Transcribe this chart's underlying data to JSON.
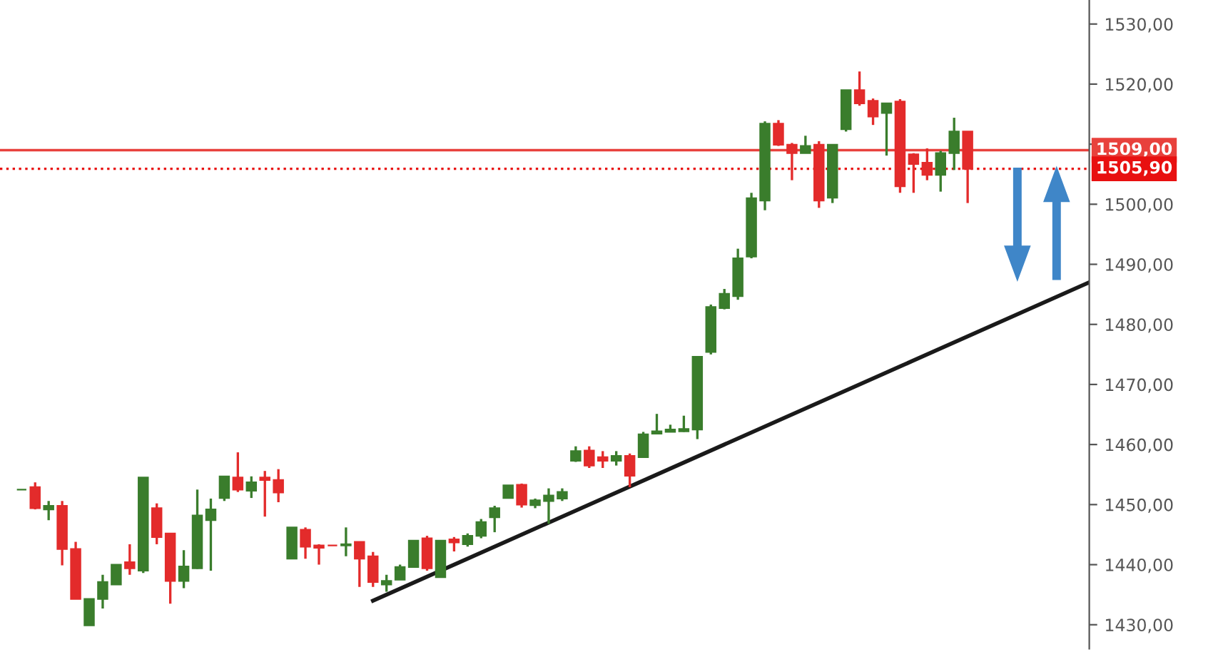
{
  "chart_data": {
    "type": "candlestick",
    "categories": [
      null,
      null,
      null,
      null,
      null,
      null,
      null,
      null,
      null,
      null,
      null,
      null,
      null,
      null,
      null,
      null,
      null,
      null,
      null,
      null,
      null,
      null,
      null,
      null,
      null,
      null,
      null,
      null,
      null,
      null,
      null,
      null,
      null,
      null,
      null,
      null,
      null,
      null,
      null,
      null,
      null,
      null,
      null,
      null,
      null,
      null,
      null,
      null,
      null,
      null,
      null,
      null,
      null,
      null,
      null,
      null,
      null,
      null,
      null,
      null,
      null,
      null,
      null,
      null,
      null,
      null,
      null,
      null,
      null,
      null,
      null,
      null,
      null,
      null,
      null,
      null,
      null,
      null,
      null,
      null
    ],
    "ohlc": [
      [
        1452.5,
        1452.5,
        1452.5,
        1452.5
      ],
      [
        1452.9,
        1453.7,
        1449.2,
        1449.4
      ],
      [
        1449.2,
        1450.6,
        1447.4,
        1449.8
      ],
      [
        1449.8,
        1450.6,
        1439.9,
        1442.6
      ],
      [
        1442.6,
        1443.8,
        1434.3,
        1434.3
      ],
      [
        1429.9,
        1434.3,
        1429.9,
        1434.3
      ],
      [
        1434.3,
        1438.3,
        1432.7,
        1437.1
      ],
      [
        1436.7,
        1440.0,
        1436.7,
        1440.0
      ],
      [
        1440.4,
        1443.4,
        1438.3,
        1439.4
      ],
      [
        1439.0,
        1454.5,
        1438.6,
        1454.5
      ],
      [
        1449.4,
        1450.2,
        1443.4,
        1444.6
      ],
      [
        1445.2,
        1445.2,
        1433.5,
        1437.3
      ],
      [
        1437.3,
        1442.4,
        1436.1,
        1439.7
      ],
      [
        1439.4,
        1452.5,
        1439.3,
        1448.2
      ],
      [
        1447.4,
        1451.0,
        1439.0,
        1449.2
      ],
      [
        1451.1,
        1454.7,
        1450.6,
        1454.7
      ],
      [
        1454.5,
        1458.7,
        1452.1,
        1452.5
      ],
      [
        1452.3,
        1454.7,
        1451.1,
        1453.7
      ],
      [
        1454.5,
        1455.6,
        1448.0,
        1454.1
      ],
      [
        1454.1,
        1455.9,
        1450.4,
        1452.0
      ],
      [
        1441.0,
        1446.2,
        1441.0,
        1446.2
      ],
      [
        1445.8,
        1446.2,
        1441.0,
        1443.0
      ],
      [
        1443.2,
        1443.4,
        1440.0,
        1442.8
      ],
      [
        1443.2,
        1443.2,
        1443.2,
        1443.2
      ],
      [
        1443.2,
        1446.2,
        1441.4,
        1443.4
      ],
      [
        1443.8,
        1443.8,
        1436.3,
        1441.0
      ],
      [
        1441.4,
        1442.1,
        1436.3,
        1437.1
      ],
      [
        1436.7,
        1438.3,
        1435.5,
        1437.3
      ],
      [
        1437.5,
        1440.0,
        1437.5,
        1439.6
      ],
      [
        1439.6,
        1444.0,
        1439.6,
        1444.0
      ],
      [
        1444.4,
        1444.8,
        1439.0,
        1439.4
      ],
      [
        1437.9,
        1444.0,
        1437.9,
        1444.0
      ],
      [
        1444.2,
        1444.6,
        1442.2,
        1443.7
      ],
      [
        1443.4,
        1445.2,
        1443.0,
        1444.8
      ],
      [
        1444.8,
        1447.6,
        1444.4,
        1447.1
      ],
      [
        1447.9,
        1449.8,
        1445.4,
        1449.4
      ],
      [
        1451.1,
        1453.2,
        1451.1,
        1453.2
      ],
      [
        1453.3,
        1453.5,
        1449.5,
        1450.0
      ],
      [
        1449.9,
        1451.0,
        1449.4,
        1450.7
      ],
      [
        1450.6,
        1452.7,
        1446.8,
        1451.5
      ],
      [
        1451.0,
        1452.7,
        1450.6,
        1452.1
      ],
      [
        1457.3,
        1459.7,
        1457.1,
        1458.9
      ],
      [
        1459.0,
        1459.7,
        1456.1,
        1456.5
      ],
      [
        1457.9,
        1458.9,
        1456.1,
        1457.3
      ],
      [
        1457.3,
        1458.9,
        1456.5,
        1458.1
      ],
      [
        1458.1,
        1458.5,
        1452.9,
        1454.8
      ],
      [
        1457.9,
        1462.1,
        1457.9,
        1461.7
      ],
      [
        1461.8,
        1465.1,
        1461.8,
        1462.2
      ],
      [
        1462.1,
        1463.3,
        1462.1,
        1462.5
      ],
      [
        1462.2,
        1464.8,
        1462.1,
        1462.6
      ],
      [
        1462.5,
        1474.6,
        1460.9,
        1474.6
      ],
      [
        1475.4,
        1483.3,
        1475.0,
        1482.9
      ],
      [
        1482.7,
        1485.9,
        1482.5,
        1485.1
      ],
      [
        1484.7,
        1492.6,
        1484.1,
        1491.0
      ],
      [
        1491.3,
        1501.9,
        1491.0,
        1501.0
      ],
      [
        1500.6,
        1513.8,
        1499.0,
        1513.4
      ],
      [
        1513.4,
        1514.0,
        1509.7,
        1509.9
      ],
      [
        1509.9,
        1510.2,
        1504.0,
        1508.5
      ],
      [
        1508.5,
        1511.4,
        1508.5,
        1509.7
      ],
      [
        1509.9,
        1510.5,
        1499.4,
        1500.6
      ],
      [
        1501.1,
        1509.9,
        1500.2,
        1509.9
      ],
      [
        1512.5,
        1519.0,
        1512.1,
        1519.0
      ],
      [
        1519.0,
        1522.1,
        1516.4,
        1516.8
      ],
      [
        1517.2,
        1517.6,
        1513.2,
        1514.6
      ],
      [
        1515.2,
        1516.8,
        1508.1,
        1516.8
      ],
      [
        1517.1,
        1517.5,
        1501.9,
        1503.0
      ],
      [
        1508.3,
        1508.5,
        1501.9,
        1506.7
      ],
      [
        1506.9,
        1509.3,
        1504.0,
        1504.9
      ],
      [
        1504.9,
        1508.9,
        1502.1,
        1508.5
      ],
      [
        1508.5,
        1514.4,
        1505.7,
        1512.1
      ],
      [
        1512.1,
        1512.1,
        1500.2,
        1505.9
      ],
      null,
      null,
      null,
      null,
      null,
      null,
      null,
      null,
      null
    ],
    "colors": [
      "#3a7d2c",
      "#e32b2b",
      "#3a7d2c",
      "#e32b2b",
      "#e32b2b",
      "#3a7d2c",
      "#3a7d2c",
      "#3a7d2c",
      "#e32b2b",
      "#3a7d2c",
      "#e32b2b",
      "#e32b2b",
      "#3a7d2c",
      "#3a7d2c",
      "#3a7d2c",
      "#3a7d2c",
      "#e32b2b",
      "#3a7d2c",
      "#e32b2b",
      "#e32b2b",
      "#3a7d2c",
      "#e32b2b",
      "#e32b2b",
      "#e32b2b",
      "#3a7d2c",
      "#e32b2b",
      "#e32b2b",
      "#3a7d2c",
      "#3a7d2c",
      "#3a7d2c",
      "#e32b2b",
      "#3a7d2c",
      "#e32b2b",
      "#3a7d2c",
      "#3a7d2c",
      "#3a7d2c",
      "#3a7d2c",
      "#e32b2b",
      "#3a7d2c",
      "#3a7d2c",
      "#3a7d2c",
      "#3a7d2c",
      "#e32b2b",
      "#e32b2b",
      "#3a7d2c",
      "#e32b2b",
      "#3a7d2c",
      "#3a7d2c",
      "#3a7d2c",
      "#3a7d2c",
      "#3a7d2c",
      "#3a7d2c",
      "#3a7d2c",
      "#3a7d2c",
      "#3a7d2c",
      "#3a7d2c",
      "#e32b2b",
      "#e32b2b",
      "#3a7d2c",
      "#e32b2b",
      "#3a7d2c",
      "#3a7d2c",
      "#e32b2b",
      "#e32b2b",
      "#3a7d2c",
      "#e32b2b",
      "#e32b2b",
      "#e32b2b",
      "#3a7d2c",
      "#3a7d2c",
      "#e32b2b",
      null,
      null,
      null,
      null,
      null,
      null,
      null,
      null,
      null
    ],
    "series": [
      {
        "type": "line",
        "values": [
          null,
          null,
          null,
          null,
          null,
          null,
          null,
          null,
          null,
          null,
          null,
          null,
          null,
          null,
          null,
          null,
          null,
          null,
          null,
          null,
          null,
          null,
          null,
          null,
          null,
          null,
          1434.0,
          null,
          null,
          null,
          null,
          null,
          null,
          null,
          null,
          null,
          null,
          null,
          null,
          null,
          null,
          null,
          null,
          null,
          null,
          null,
          null,
          null,
          null,
          null,
          null,
          null,
          null,
          null,
          null,
          null,
          null,
          null,
          null,
          null,
          null,
          null,
          null,
          null,
          null,
          null,
          null,
          null,
          null,
          null,
          null,
          null,
          null,
          null,
          null,
          null,
          null,
          null,
          null,
          1487.0
        ],
        "color": "#1a1a1a"
      }
    ],
    "ylim": [
      1426,
      1534
    ],
    "yticks": [
      {
        "value": 1430,
        "label": "1430,00"
      },
      {
        "value": 1440,
        "label": "1440,00"
      },
      {
        "value": 1450,
        "label": "1450,00"
      },
      {
        "value": 1460,
        "label": "1460,00"
      },
      {
        "value": 1470,
        "label": "1470,00"
      },
      {
        "value": 1480,
        "label": "1480,00"
      },
      {
        "value": 1490,
        "label": "1490,00"
      },
      {
        "value": 1500,
        "label": "1500,00"
      },
      {
        "value": 1510,
        "label": null
      },
      {
        "value": 1520,
        "label": "1520,00"
      },
      {
        "value": 1530,
        "label": "1530,00"
      }
    ],
    "tick_labels": "y",
    "grid": false,
    "ref_lines": [
      {
        "axis": "y",
        "value": 1509.0,
        "label": "1509,00",
        "color": "#e8413c",
        "line_style": "solid"
      },
      {
        "axis": "y",
        "value": 1505.9,
        "label": "1505,90",
        "color": "#e81010",
        "line_style": "dotted"
      }
    ]
  }
}
